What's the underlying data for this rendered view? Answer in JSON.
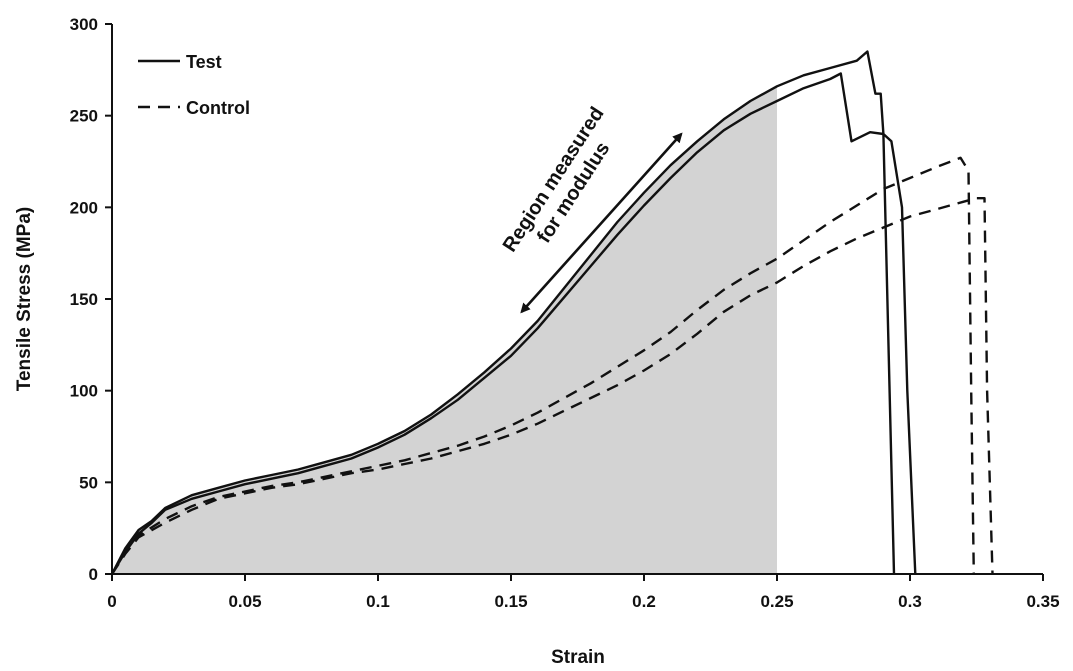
{
  "chart_data": {
    "type": "line",
    "xlabel": "Strain",
    "ylabel": "Tensile Stress  (MPa)",
    "xlim": [
      0,
      0.35
    ],
    "ylim": [
      0,
      300
    ],
    "x_ticks": [
      0,
      0.05,
      0.1,
      0.15,
      0.2,
      0.25,
      0.3,
      0.35
    ],
    "x_tick_labels": [
      "0",
      "0.05",
      "0.1",
      "0.15",
      "0.2",
      "0.25",
      "0.3",
      "0.35"
    ],
    "y_ticks": [
      0,
      50,
      100,
      150,
      200,
      250,
      300
    ],
    "y_tick_labels": [
      "0",
      "50",
      "100",
      "150",
      "200",
      "250",
      "300"
    ],
    "grid": false,
    "legend_position": "top-left",
    "legend": [
      {
        "label": "Test",
        "style": "solid"
      },
      {
        "label": "Control",
        "style": "dashed"
      }
    ],
    "shaded_region": {
      "x_start": 0,
      "x_end": 0.25,
      "color": "#d3d3d3"
    },
    "annotation": {
      "lines": [
        "Region measured",
        "for modulus"
      ],
      "arrow_from": [
        0.154,
        143
      ],
      "arrow_to": [
        0.214,
        240
      ]
    },
    "series": [
      {
        "name": "Test",
        "style": "solid",
        "points": [
          [
            0,
            0
          ],
          [
            0.005,
            14
          ],
          [
            0.01,
            24
          ],
          [
            0.015,
            29
          ],
          [
            0.02,
            36
          ],
          [
            0.03,
            43
          ],
          [
            0.04,
            47
          ],
          [
            0.05,
            51
          ],
          [
            0.06,
            54
          ],
          [
            0.07,
            57
          ],
          [
            0.08,
            61
          ],
          [
            0.09,
            65
          ],
          [
            0.1,
            71
          ],
          [
            0.11,
            78
          ],
          [
            0.12,
            87
          ],
          [
            0.13,
            98
          ],
          [
            0.14,
            110
          ],
          [
            0.15,
            123
          ],
          [
            0.16,
            138
          ],
          [
            0.17,
            156
          ],
          [
            0.18,
            174
          ],
          [
            0.19,
            192
          ],
          [
            0.2,
            208
          ],
          [
            0.21,
            223
          ],
          [
            0.22,
            236
          ],
          [
            0.23,
            248
          ],
          [
            0.24,
            258
          ],
          [
            0.25,
            266
          ],
          [
            0.26,
            272
          ],
          [
            0.27,
            276
          ],
          [
            0.28,
            280
          ],
          [
            0.284,
            285
          ],
          [
            0.287,
            262
          ],
          [
            0.289,
            262
          ],
          [
            0.29,
            240
          ],
          [
            0.292,
            120
          ],
          [
            0.294,
            0
          ]
        ]
      },
      {
        "name": "Test",
        "style": "solid",
        "points": [
          [
            0,
            0
          ],
          [
            0.005,
            12
          ],
          [
            0.01,
            22
          ],
          [
            0.015,
            28
          ],
          [
            0.02,
            35
          ],
          [
            0.03,
            41
          ],
          [
            0.04,
            45
          ],
          [
            0.05,
            49
          ],
          [
            0.06,
            52
          ],
          [
            0.07,
            55
          ],
          [
            0.08,
            59
          ],
          [
            0.09,
            63
          ],
          [
            0.1,
            69
          ],
          [
            0.11,
            76
          ],
          [
            0.12,
            85
          ],
          [
            0.13,
            95
          ],
          [
            0.14,
            107
          ],
          [
            0.15,
            119
          ],
          [
            0.16,
            134
          ],
          [
            0.17,
            151
          ],
          [
            0.18,
            168
          ],
          [
            0.19,
            185
          ],
          [
            0.2,
            201
          ],
          [
            0.21,
            216
          ],
          [
            0.22,
            230
          ],
          [
            0.23,
            242
          ],
          [
            0.24,
            251
          ],
          [
            0.25,
            258
          ],
          [
            0.26,
            265
          ],
          [
            0.27,
            270
          ],
          [
            0.274,
            273
          ],
          [
            0.278,
            236
          ],
          [
            0.285,
            241
          ],
          [
            0.29,
            240
          ],
          [
            0.293,
            236
          ],
          [
            0.297,
            200
          ],
          [
            0.299,
            100
          ],
          [
            0.302,
            0
          ]
        ]
      },
      {
        "name": "Control",
        "style": "dashed",
        "points": [
          [
            0,
            0
          ],
          [
            0.005,
            12
          ],
          [
            0.01,
            21
          ],
          [
            0.02,
            30
          ],
          [
            0.03,
            37
          ],
          [
            0.04,
            42
          ],
          [
            0.05,
            45
          ],
          [
            0.06,
            48
          ],
          [
            0.07,
            50
          ],
          [
            0.08,
            53
          ],
          [
            0.09,
            56
          ],
          [
            0.1,
            59
          ],
          [
            0.11,
            62
          ],
          [
            0.12,
            66
          ],
          [
            0.13,
            70
          ],
          [
            0.14,
            75
          ],
          [
            0.15,
            81
          ],
          [
            0.16,
            88
          ],
          [
            0.17,
            96
          ],
          [
            0.18,
            104
          ],
          [
            0.19,
            113
          ],
          [
            0.2,
            122
          ],
          [
            0.21,
            132
          ],
          [
            0.22,
            144
          ],
          [
            0.23,
            155
          ],
          [
            0.24,
            164
          ],
          [
            0.25,
            172
          ],
          [
            0.26,
            182
          ],
          [
            0.27,
            192
          ],
          [
            0.28,
            201
          ],
          [
            0.29,
            210
          ],
          [
            0.3,
            216
          ],
          [
            0.31,
            222
          ],
          [
            0.319,
            227
          ],
          [
            0.322,
            220
          ],
          [
            0.323,
            100
          ],
          [
            0.324,
            0
          ]
        ]
      },
      {
        "name": "Control",
        "style": "dashed",
        "points": [
          [
            0,
            0
          ],
          [
            0.005,
            11
          ],
          [
            0.01,
            20
          ],
          [
            0.02,
            28
          ],
          [
            0.03,
            35
          ],
          [
            0.04,
            41
          ],
          [
            0.05,
            44
          ],
          [
            0.06,
            47
          ],
          [
            0.07,
            49
          ],
          [
            0.08,
            52
          ],
          [
            0.09,
            55
          ],
          [
            0.1,
            57
          ],
          [
            0.11,
            60
          ],
          [
            0.12,
            63
          ],
          [
            0.13,
            67
          ],
          [
            0.14,
            71
          ],
          [
            0.15,
            76
          ],
          [
            0.16,
            82
          ],
          [
            0.17,
            89
          ],
          [
            0.18,
            96
          ],
          [
            0.19,
            103
          ],
          [
            0.2,
            111
          ],
          [
            0.21,
            120
          ],
          [
            0.22,
            131
          ],
          [
            0.23,
            143
          ],
          [
            0.24,
            152
          ],
          [
            0.25,
            159
          ],
          [
            0.26,
            168
          ],
          [
            0.27,
            176
          ],
          [
            0.28,
            183
          ],
          [
            0.29,
            189
          ],
          [
            0.3,
            195
          ],
          [
            0.31,
            199
          ],
          [
            0.32,
            203
          ],
          [
            0.325,
            205
          ],
          [
            0.328,
            205
          ],
          [
            0.329,
            100
          ],
          [
            0.331,
            0
          ]
        ]
      }
    ]
  }
}
